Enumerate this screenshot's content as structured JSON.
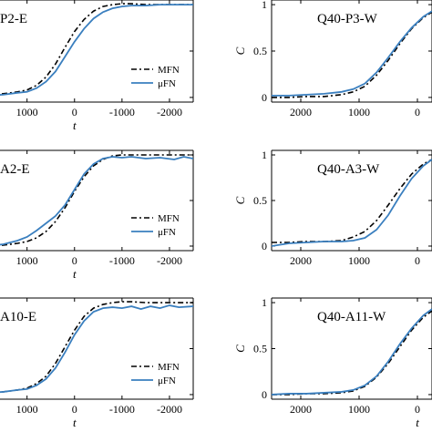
{
  "colors": {
    "mfn": "#000000",
    "ufn": "#3a7fbf",
    "axis": "#000000"
  },
  "chart_data": [
    {
      "type": "line",
      "title": "P2-E",
      "xlabel": "t",
      "ylabel": "",
      "x_ticks": [
        "1000",
        "0",
        "-1000",
        "-2000"
      ],
      "y_ticks": [],
      "xlim": [
        1800,
        -2500
      ],
      "ylim": [
        -0.05,
        1.05
      ],
      "legend": true,
      "legend_position": "bottom-right",
      "series": [
        {
          "name": "MFN",
          "style": "dash-dot",
          "x": [
            1800,
            1500,
            1200,
            1000,
            800,
            600,
            400,
            200,
            0,
            -200,
            -400,
            -600,
            -800,
            -1000,
            -1200,
            -1500,
            -1800,
            -2100,
            -2500
          ],
          "y": [
            0.03,
            0.04,
            0.06,
            0.08,
            0.13,
            0.22,
            0.36,
            0.54,
            0.71,
            0.84,
            0.93,
            0.98,
            1.0,
            1.01,
            1.01,
            1.0,
            1.0,
            1.0,
            1.0
          ]
        },
        {
          "name": "μFN",
          "style": "solid",
          "x": [
            1800,
            1500,
            1200,
            1000,
            800,
            600,
            400,
            200,
            0,
            -200,
            -400,
            -600,
            -800,
            -1000,
            -1200,
            -1500,
            -1800,
            -2100,
            -2500
          ],
          "y": [
            0.02,
            0.03,
            0.05,
            0.06,
            0.1,
            0.17,
            0.28,
            0.44,
            0.6,
            0.74,
            0.85,
            0.92,
            0.96,
            0.98,
            0.99,
            0.99,
            1.0,
            1.0,
            1.0
          ]
        }
      ]
    },
    {
      "type": "line",
      "title": "Q40-P3-W",
      "xlabel": "",
      "ylabel": "C",
      "x_ticks": [
        "2000",
        "1000",
        "0"
      ],
      "y_ticks": [
        "0",
        "0.5",
        "1"
      ],
      "xlim": [
        2500,
        -250
      ],
      "ylim": [
        -0.05,
        1.05
      ],
      "legend": false,
      "series": [
        {
          "name": "MFN",
          "style": "dash-dot",
          "x": [
            2500,
            2200,
            1900,
            1600,
            1300,
            1100,
            900,
            700,
            500,
            300,
            100,
            -100,
            -250
          ],
          "y": [
            0.0,
            0.0,
            0.01,
            0.01,
            0.03,
            0.06,
            0.12,
            0.24,
            0.4,
            0.58,
            0.74,
            0.86,
            0.92
          ]
        },
        {
          "name": "μFN",
          "style": "solid",
          "x": [
            2500,
            2200,
            1900,
            1600,
            1300,
            1100,
            900,
            700,
            500,
            300,
            100,
            -100,
            -250
          ],
          "y": [
            0.02,
            0.02,
            0.03,
            0.04,
            0.06,
            0.09,
            0.15,
            0.27,
            0.43,
            0.6,
            0.75,
            0.87,
            0.93
          ]
        }
      ]
    },
    {
      "type": "line",
      "title": "A2-E",
      "xlabel": "t",
      "ylabel": "",
      "x_ticks": [
        "1000",
        "0",
        "-1000",
        "-2000"
      ],
      "y_ticks": [],
      "xlim": [
        1800,
        -2500
      ],
      "ylim": [
        -0.05,
        1.05
      ],
      "legend": true,
      "legend_position": "bottom-right",
      "series": [
        {
          "name": "MFN",
          "style": "dash-dot",
          "x": [
            1800,
            1500,
            1200,
            1000,
            800,
            600,
            400,
            200,
            0,
            -200,
            -400,
            -600,
            -800,
            -1000,
            -1200,
            -1500,
            -1800,
            -2100,
            -2500
          ],
          "y": [
            0.0,
            0.01,
            0.03,
            0.05,
            0.09,
            0.16,
            0.27,
            0.42,
            0.6,
            0.76,
            0.88,
            0.95,
            0.99,
            1.0,
            1.0,
            1.0,
            1.0,
            1.0,
            1.0
          ]
        },
        {
          "name": "μFN",
          "style": "solid",
          "x": [
            1800,
            1500,
            1200,
            1000,
            800,
            600,
            400,
            200,
            0,
            -200,
            -400,
            -600,
            -800,
            -1000,
            -1200,
            -1500,
            -1800,
            -2100,
            -2300,
            -2500
          ],
          "y": [
            0.0,
            0.02,
            0.06,
            0.1,
            0.17,
            0.25,
            0.33,
            0.45,
            0.62,
            0.79,
            0.9,
            0.96,
            0.98,
            0.97,
            0.98,
            0.96,
            0.97,
            0.95,
            0.98,
            0.96
          ]
        }
      ]
    },
    {
      "type": "line",
      "title": "Q40-A3-W",
      "xlabel": "",
      "ylabel": "C",
      "x_ticks": [
        "2000",
        "1000",
        "0"
      ],
      "y_ticks": [
        "0",
        "0.5",
        "1"
      ],
      "xlim": [
        2500,
        -250
      ],
      "ylim": [
        -0.05,
        1.05
      ],
      "legend": false,
      "series": [
        {
          "name": "MFN",
          "style": "dash-dot",
          "x": [
            2500,
            2200,
            1900,
            1600,
            1300,
            1100,
            900,
            700,
            500,
            300,
            100,
            -100,
            -250
          ],
          "y": [
            0.04,
            0.04,
            0.05,
            0.05,
            0.06,
            0.1,
            0.16,
            0.28,
            0.45,
            0.63,
            0.79,
            0.9,
            0.95
          ]
        },
        {
          "name": "μFN",
          "style": "solid",
          "x": [
            2500,
            2200,
            1900,
            1600,
            1300,
            1100,
            900,
            700,
            500,
            300,
            100,
            -100,
            -250
          ],
          "y": [
            0.0,
            0.03,
            0.04,
            0.05,
            0.05,
            0.06,
            0.09,
            0.18,
            0.34,
            0.55,
            0.74,
            0.88,
            0.95
          ]
        }
      ]
    },
    {
      "type": "line",
      "title": "A10-E",
      "xlabel": "t",
      "ylabel": "",
      "x_ticks": [
        "1000",
        "0",
        "-1000",
        "-2000"
      ],
      "y_ticks": [],
      "xlim": [
        1800,
        -2500
      ],
      "ylim": [
        -0.05,
        1.05
      ],
      "legend": true,
      "legend_position": "bottom-right",
      "series": [
        {
          "name": "MFN",
          "style": "dash-dot",
          "x": [
            1800,
            1500,
            1200,
            1000,
            800,
            600,
            400,
            200,
            0,
            -200,
            -400,
            -600,
            -800,
            -1000,
            -1200,
            -1500,
            -1800,
            -2100,
            -2500
          ],
          "y": [
            0.02,
            0.03,
            0.05,
            0.07,
            0.12,
            0.2,
            0.34,
            0.52,
            0.7,
            0.85,
            0.94,
            0.98,
            1.0,
            1.01,
            1.01,
            1.0,
            1.0,
            1.0,
            1.0
          ]
        },
        {
          "name": "μFN",
          "style": "solid",
          "x": [
            1800,
            1500,
            1200,
            1000,
            800,
            600,
            400,
            200,
            0,
            -200,
            -400,
            -600,
            -800,
            -1000,
            -1200,
            -1400,
            -1600,
            -1800,
            -2000,
            -2200,
            -2500
          ],
          "y": [
            0.02,
            0.03,
            0.05,
            0.06,
            0.1,
            0.17,
            0.29,
            0.46,
            0.65,
            0.8,
            0.9,
            0.94,
            0.95,
            0.94,
            0.96,
            0.93,
            0.96,
            0.94,
            0.97,
            0.95,
            0.96
          ]
        }
      ]
    },
    {
      "type": "line",
      "title": "Q40-A11-W",
      "xlabel": "t",
      "ylabel": "C",
      "x_ticks": [
        "2000",
        "1000",
        "0"
      ],
      "y_ticks": [
        "0",
        "0.5",
        "1"
      ],
      "xlim": [
        2500,
        -250
      ],
      "ylim": [
        -0.05,
        1.05
      ],
      "legend": false,
      "series": [
        {
          "name": "MFN",
          "style": "dash-dot",
          "x": [
            2500,
            2200,
            1900,
            1600,
            1300,
            1100,
            900,
            700,
            500,
            300,
            100,
            -100,
            -250
          ],
          "y": [
            0.0,
            0.0,
            0.01,
            0.01,
            0.02,
            0.04,
            0.09,
            0.19,
            0.34,
            0.52,
            0.7,
            0.84,
            0.91
          ]
        },
        {
          "name": "μFN",
          "style": "solid",
          "x": [
            2500,
            2200,
            1900,
            1600,
            1300,
            1100,
            900,
            700,
            500,
            300,
            100,
            -100,
            -250
          ],
          "y": [
            0.0,
            0.01,
            0.01,
            0.02,
            0.03,
            0.05,
            0.1,
            0.2,
            0.36,
            0.55,
            0.72,
            0.86,
            0.93
          ]
        }
      ]
    }
  ]
}
